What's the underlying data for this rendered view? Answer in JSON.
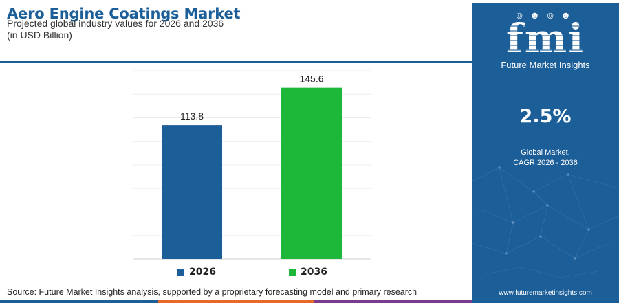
{
  "title": "Aero Engine Coatings Market",
  "subtitle": "Projected global industry values for 2026 and 2036",
  "unit": "(in USD Billion)",
  "source": "Source: Future Market Insights analysis, supported by a proprietary forecasting model and primary research",
  "colors": {
    "brand_blue": "#1b5e98",
    "bar_2026": "#1b5e98",
    "bar_2036": "#1db83a",
    "bottom_bar": [
      "#1b5e98",
      "#e8682a",
      "#7a3b8f"
    ]
  },
  "sidebar": {
    "logo_text": "fmi",
    "logo_subtitle": "Future Market Insights",
    "cagr_value": "2.5%",
    "cagr_label_line1": "Global Market,",
    "cagr_label_line2": "CAGR 2026 - 2036",
    "website": "www.futuremarketinsights.com"
  },
  "chart_data": {
    "type": "bar",
    "categories": [
      "2026",
      "2036"
    ],
    "values": [
      113.8,
      145.6
    ],
    "value_labels": [
      "113.8",
      "145.6"
    ],
    "title": "Aero Engine Coatings Market",
    "xlabel": "",
    "ylabel": "",
    "ylim": [
      0,
      160
    ],
    "grid": true,
    "legend": "bottom-center"
  }
}
